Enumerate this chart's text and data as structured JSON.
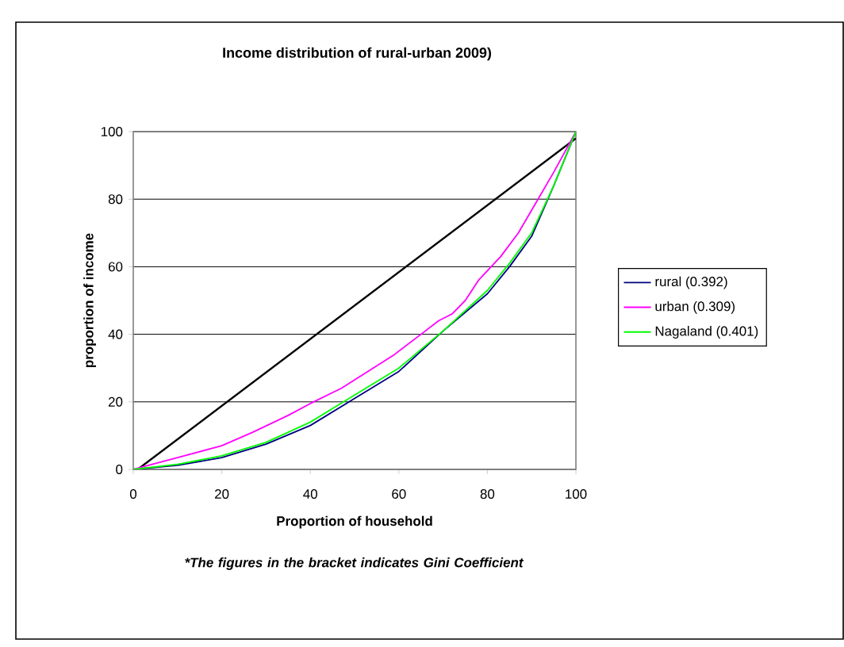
{
  "chart_data": {
    "type": "line",
    "title": "Income distribution of rural-urban 2009)",
    "xlabel": "Proportion of household",
    "ylabel": "proportion of income",
    "annotations": [
      "*The figures in the bracket indicates Gini Coefficient"
    ],
    "xlim": [
      0,
      100
    ],
    "ylim": [
      0,
      100
    ],
    "xticks": [
      0,
      20,
      40,
      60,
      80,
      100
    ],
    "yticks": [
      0,
      20,
      40,
      60,
      80,
      100
    ],
    "grid": "y",
    "legend": "right",
    "marker": "none",
    "line_style": "solid",
    "series": [
      {
        "color": "#000000",
        "x": [
          1,
          100
        ],
        "values": [
          0,
          98
        ]
      },
      {
        "name": "rural (0.392)",
        "color": "#000080",
        "x": [
          0,
          10,
          20,
          30,
          40,
          50,
          60,
          70,
          80,
          85,
          90,
          95,
          100
        ],
        "values": [
          0,
          1.2,
          3.5,
          7.5,
          13,
          21,
          29,
          41,
          52,
          60,
          69,
          84,
          100
        ]
      },
      {
        "name": "urban (0.309)",
        "color": "#ff00ff",
        "x": [
          0,
          10,
          20,
          27,
          35,
          40,
          47,
          53,
          59,
          65,
          69,
          72,
          75,
          78,
          83,
          87,
          91,
          95,
          100
        ],
        "values": [
          0,
          3.5,
          7,
          11,
          16,
          19.5,
          24,
          29,
          34,
          40,
          44,
          46,
          50,
          56,
          63,
          70,
          79,
          88,
          100
        ]
      },
      {
        "name": "Nagaland (0.401)",
        "color": "#00ff00",
        "x": [
          0,
          10,
          20,
          30,
          40,
          50,
          60,
          70,
          80,
          85,
          90,
          95,
          100
        ],
        "values": [
          0,
          1.5,
          4,
          8,
          14,
          22,
          30,
          41,
          53,
          61,
          70,
          84,
          100
        ]
      }
    ]
  }
}
